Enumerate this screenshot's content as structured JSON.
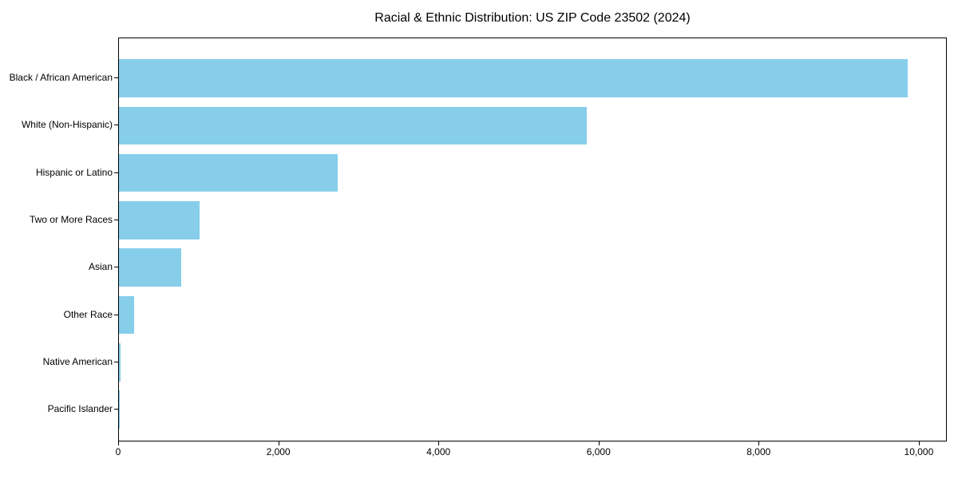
{
  "chart_data": {
    "type": "bar",
    "orientation": "horizontal",
    "title": "Racial & Ethnic Distribution: US ZIP Code 23502 (2024)",
    "categories": [
      "Black / African American",
      "White (Non-Hispanic)",
      "Hispanic or Latino",
      "Two or More Races",
      "Asian",
      "Other Race",
      "Native American",
      "Pacific Islander"
    ],
    "values": [
      9855,
      5840,
      2730,
      1005,
      775,
      185,
      20,
      5
    ],
    "xlabel": "",
    "ylabel": "",
    "xlim": [
      0,
      10350
    ],
    "x_ticks": [
      0,
      2000,
      4000,
      6000,
      8000,
      10000
    ],
    "x_tick_labels": [
      "0",
      "2,000",
      "4,000",
      "6,000",
      "8,000",
      "10,000"
    ],
    "bar_color": "#87CEEB",
    "grid": false,
    "legend_position": "none"
  }
}
